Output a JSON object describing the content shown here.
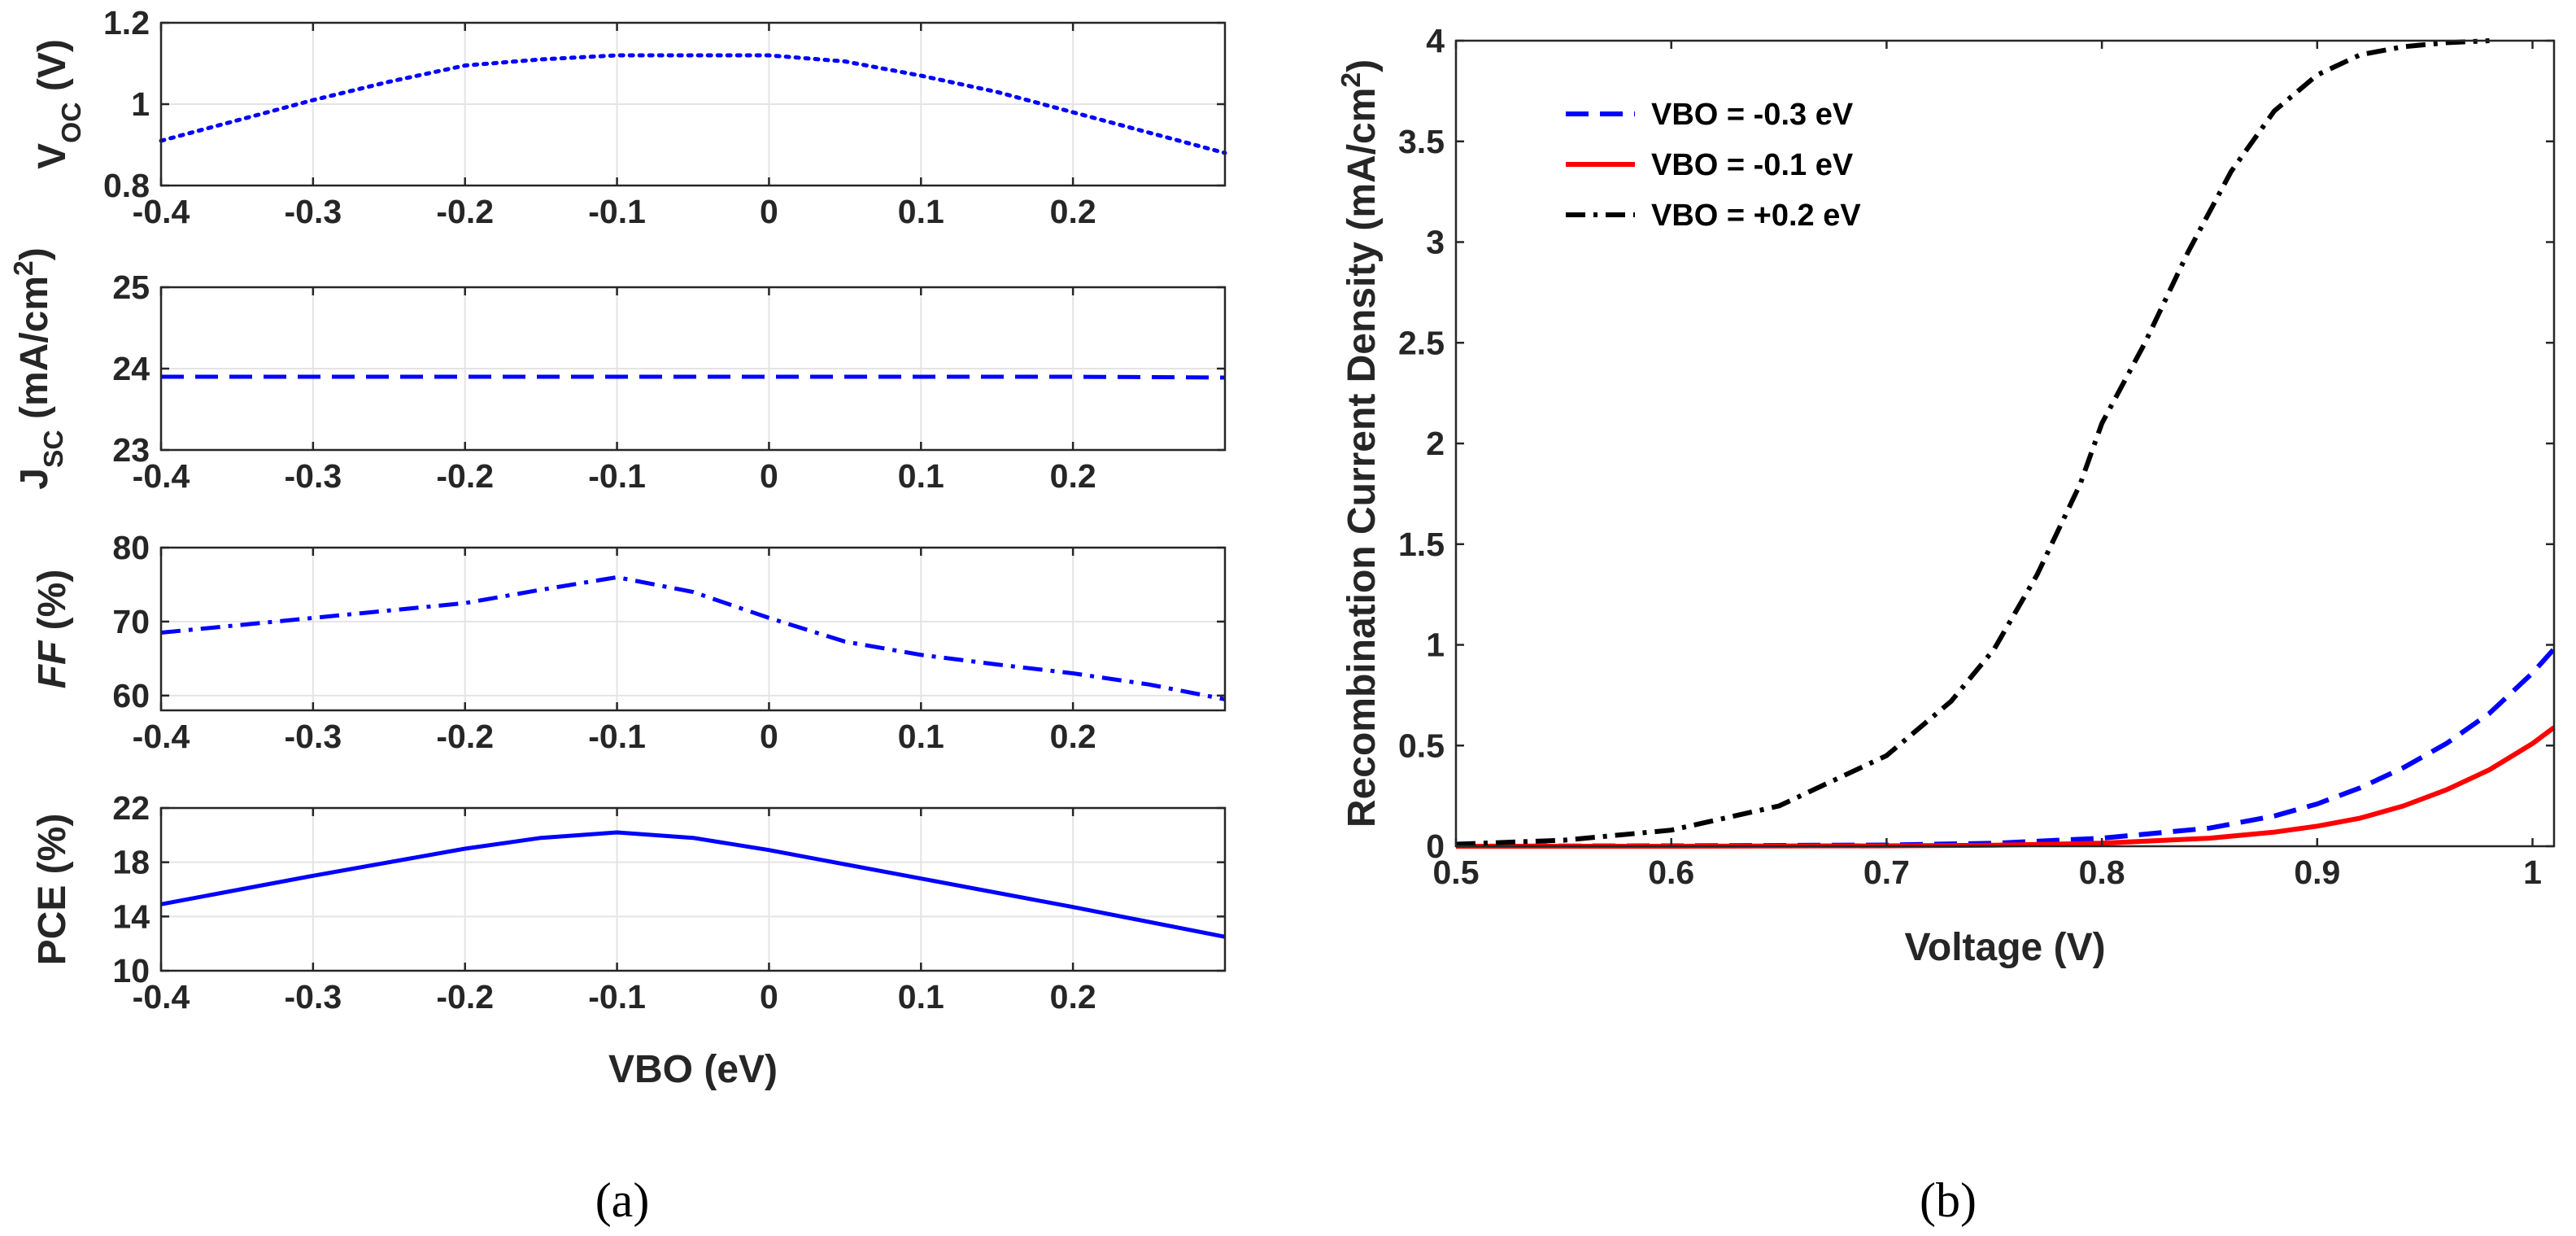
{
  "captions": {
    "a": "(a)",
    "b": "(b)"
  },
  "chart_data": [
    {
      "type": "line",
      "panel": "a-voc",
      "ylabel_main": "V",
      "ylabel_sub": "OC",
      "ylabel_unit": " (V)",
      "xlim": [
        -0.4,
        0.3
      ],
      "ylim": [
        0.8,
        1.2
      ],
      "xticks": [
        "-0.4",
        "-0.3",
        "-0.2",
        "-0.1",
        "0",
        "0.1",
        "0.2"
      ],
      "yticks": [
        "0.8",
        "1",
        "1.2"
      ],
      "grid": true,
      "color": "#0000ff",
      "dash": "dotted",
      "series": [
        {
          "x": [
            -0.4,
            -0.35,
            -0.3,
            -0.25,
            -0.2,
            -0.15,
            -0.1,
            -0.05,
            0,
            0.05,
            0.1,
            0.15,
            0.2,
            0.25,
            0.3
          ],
          "y": [
            0.91,
            0.96,
            1.01,
            1.055,
            1.095,
            1.11,
            1.12,
            1.12,
            1.12,
            1.105,
            1.07,
            1.03,
            0.98,
            0.93,
            0.88
          ]
        }
      ]
    },
    {
      "type": "line",
      "panel": "a-jsc",
      "ylabel_main": "J",
      "ylabel_sub": "SC",
      "ylabel_unit": " (mA/cm",
      "ylabel_sup": "2",
      "ylabel_close": ")",
      "xlim": [
        -0.4,
        0.3
      ],
      "ylim": [
        23,
        25
      ],
      "xticks": [
        "-0.4",
        "-0.3",
        "-0.2",
        "-0.1",
        "0",
        "0.1",
        "0.2"
      ],
      "yticks": [
        "23",
        "24",
        "25"
      ],
      "grid": true,
      "color": "#0000ff",
      "dash": "dashed",
      "series": [
        {
          "x": [
            -0.4,
            -0.3,
            -0.2,
            -0.1,
            0,
            0.1,
            0.2,
            0.3
          ],
          "y": [
            23.9,
            23.9,
            23.9,
            23.9,
            23.9,
            23.9,
            23.9,
            23.89
          ]
        }
      ]
    },
    {
      "type": "line",
      "panel": "a-ff",
      "ylabel_main": "FF",
      "ylabel_unit": " (%)",
      "xlim": [
        -0.4,
        0.3
      ],
      "ylim": [
        58,
        80
      ],
      "xticks": [
        "-0.4",
        "-0.3",
        "-0.2",
        "-0.1",
        "0",
        "0.1",
        "0.2"
      ],
      "yticks": [
        "60",
        "70",
        "80"
      ],
      "grid": true,
      "color": "#0000ff",
      "dash": "dashdot",
      "series": [
        {
          "x": [
            -0.4,
            -0.35,
            -0.3,
            -0.25,
            -0.2,
            -0.15,
            -0.1,
            -0.05,
            0,
            0.05,
            0.1,
            0.15,
            0.2,
            0.25,
            0.3
          ],
          "y": [
            68.5,
            69.5,
            70.5,
            71.5,
            72.5,
            74.3,
            76.0,
            74.0,
            70.5,
            67.3,
            65.5,
            64.2,
            63.0,
            61.5,
            59.5
          ]
        }
      ]
    },
    {
      "type": "line",
      "panel": "a-pce",
      "ylabel_main": "PCE (%)",
      "xlabel": "VBO (eV)",
      "xlim": [
        -0.4,
        0.3
      ],
      "ylim": [
        10,
        22
      ],
      "xticks": [
        "-0.4",
        "-0.3",
        "-0.2",
        "-0.1",
        "0",
        "0.1",
        "0.2"
      ],
      "yticks": [
        "10",
        "14",
        "18",
        "22"
      ],
      "grid": true,
      "color": "#0000ff",
      "dash": "solid",
      "series": [
        {
          "x": [
            -0.4,
            -0.3,
            -0.2,
            -0.15,
            -0.1,
            -0.05,
            0,
            0.1,
            0.2,
            0.3
          ],
          "y": [
            14.9,
            17.0,
            19.0,
            19.8,
            20.2,
            19.8,
            18.9,
            16.8,
            14.7,
            12.5
          ]
        }
      ]
    },
    {
      "type": "line",
      "panel": "b",
      "ylabel": "Recombination Current Density (mA/cm",
      "ylabel_sup": "2",
      "ylabel_close": ")",
      "xlabel": "Voltage (V)",
      "xlim": [
        0.5,
        1.01
      ],
      "ylim": [
        0,
        4
      ],
      "xticks": [
        "0.5",
        "0.6",
        "0.7",
        "0.8",
        "0.9",
        "1"
      ],
      "yticks": [
        "0",
        "0.5",
        "1",
        "1.5",
        "2",
        "2.5",
        "3",
        "3.5",
        "4"
      ],
      "grid": false,
      "legend_position": "top-left",
      "series": [
        {
          "name": "VBO = -0.3 eV",
          "color": "#0000ff",
          "dash": "dashed",
          "x": [
            0.5,
            0.6,
            0.7,
            0.75,
            0.8,
            0.85,
            0.88,
            0.9,
            0.92,
            0.94,
            0.96,
            0.98,
            1.0,
            1.01
          ],
          "y": [
            0.0,
            0.002,
            0.006,
            0.015,
            0.04,
            0.09,
            0.15,
            0.21,
            0.29,
            0.39,
            0.51,
            0.66,
            0.86,
            0.98
          ]
        },
        {
          "name": "VBO = -0.1 eV",
          "color": "#ff0000",
          "dash": "solid",
          "x": [
            0.5,
            0.6,
            0.7,
            0.75,
            0.8,
            0.85,
            0.88,
            0.9,
            0.92,
            0.94,
            0.96,
            0.98,
            1.0,
            1.01
          ],
          "y": [
            0.0,
            0.0,
            0.002,
            0.005,
            0.015,
            0.04,
            0.07,
            0.1,
            0.14,
            0.2,
            0.28,
            0.38,
            0.51,
            0.59
          ]
        },
        {
          "name": "VBO = +0.2 eV",
          "color": "#000000",
          "dash": "dashdot",
          "x": [
            0.5,
            0.55,
            0.6,
            0.65,
            0.7,
            0.73,
            0.75,
            0.77,
            0.79,
            0.8,
            0.82,
            0.84,
            0.86,
            0.88,
            0.9,
            0.92,
            0.94,
            0.96,
            0.98
          ],
          "y": [
            0.01,
            0.03,
            0.08,
            0.2,
            0.45,
            0.72,
            0.98,
            1.35,
            1.8,
            2.1,
            2.5,
            2.95,
            3.35,
            3.65,
            3.83,
            3.93,
            3.97,
            3.99,
            4.0
          ]
        }
      ]
    }
  ]
}
